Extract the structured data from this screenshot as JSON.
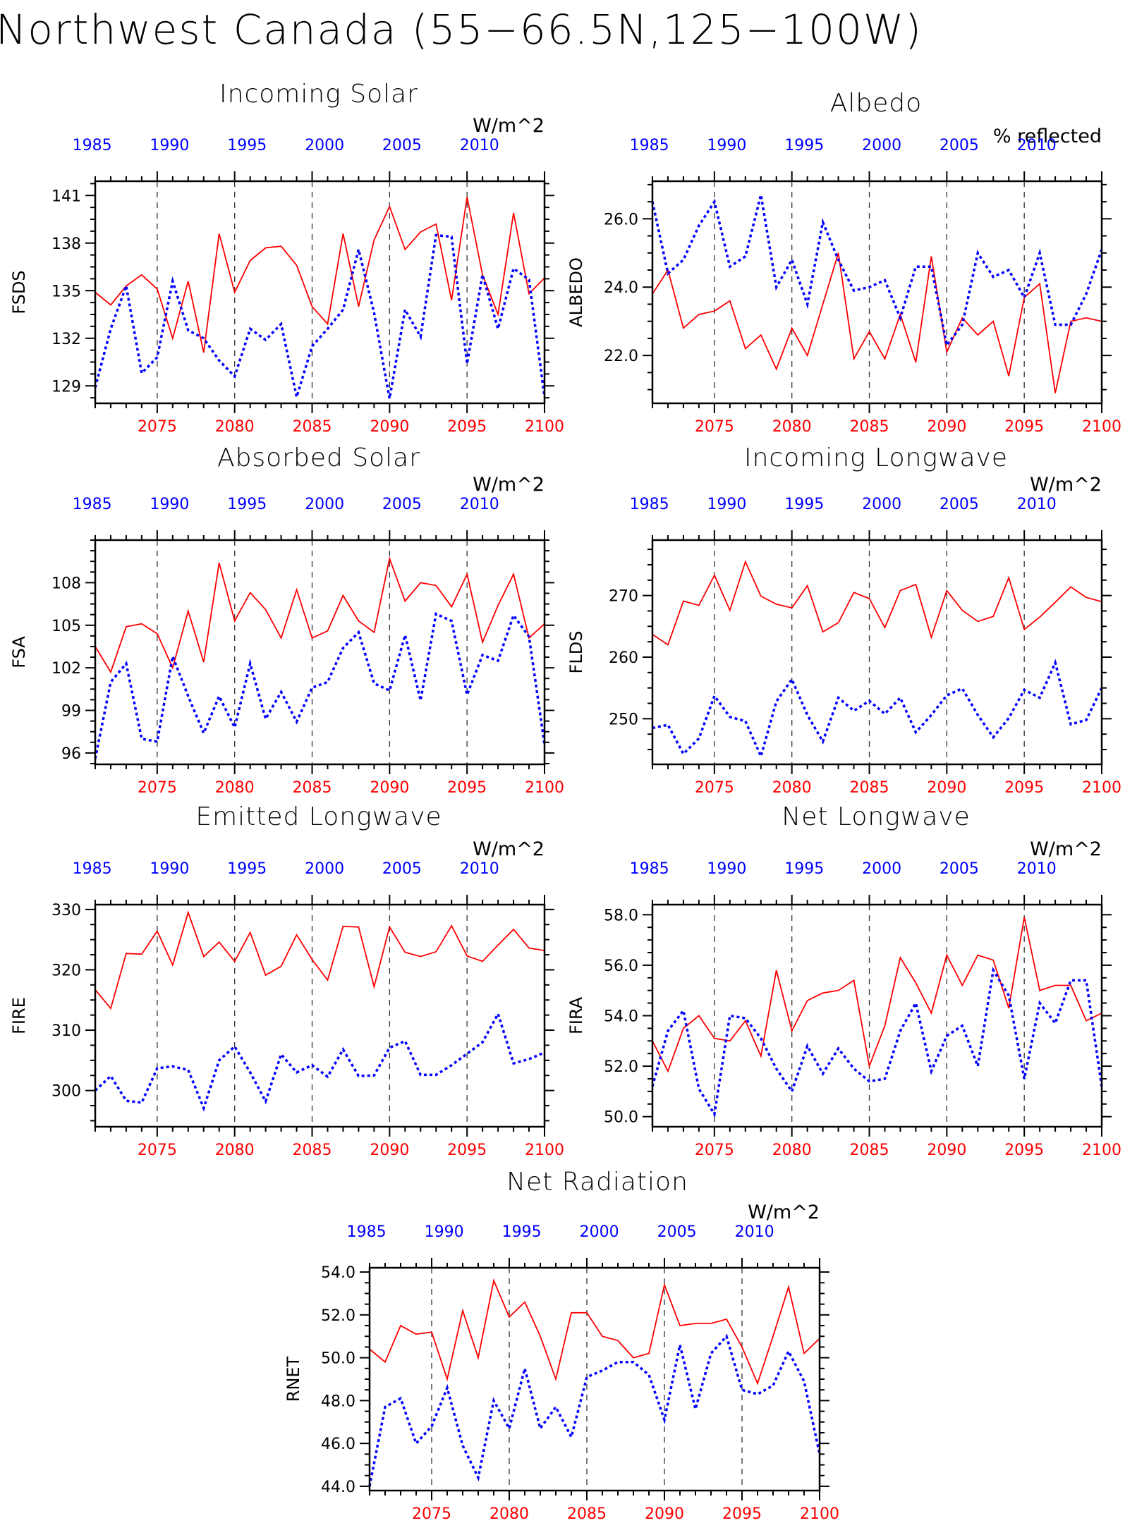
{
  "figure_title": "Northwest Canada (55−66.5N,125−100W)",
  "colors": {
    "future": "#ff0000",
    "historical": "#0000ff",
    "axis": "#000000"
  },
  "chart_data": [
    {
      "type": "line",
      "title": "Incoming Solar",
      "unit": "W/m^2",
      "ylabel": "FSDS",
      "ylim": [
        127.9,
        141.9
      ],
      "yticks": [
        129,
        132,
        135,
        138,
        141
      ],
      "ytick_labels": [
        "129",
        "132",
        "135",
        "138",
        "141"
      ],
      "series": [
        {
          "values": [
            134.9,
            134.1,
            135.3,
            136.0,
            135.1,
            132.0,
            135.6,
            131.1,
            138.6,
            134.9,
            136.9,
            137.7,
            137.8,
            136.6,
            134.0,
            132.9,
            138.6,
            134.0,
            138.2,
            140.3,
            137.6,
            138.7,
            139.2,
            134.4,
            140.9,
            136.0,
            133.5,
            139.9,
            134.8,
            135.8
          ]
        },
        {
          "values": [
            128.9,
            132.6,
            135.3,
            129.8,
            130.8,
            135.6,
            132.5,
            132.0,
            130.6,
            129.6,
            132.6,
            131.9,
            132.9,
            128.3,
            131.5,
            132.6,
            133.8,
            137.6,
            133.6,
            128.2,
            133.8,
            132.1,
            138.5,
            138.4,
            130.4,
            136.0,
            132.6,
            136.4,
            135.7,
            128.3
          ]
        }
      ]
    },
    {
      "type": "line",
      "title": "Albedo",
      "unit": "% reflected",
      "ylabel": "ALBEDO",
      "ylim": [
        20.6,
        27.1
      ],
      "yticks": [
        22,
        24,
        26
      ],
      "ytick_labels": [
        "22.0",
        "24.0",
        "26.0"
      ],
      "series": [
        {
          "values": [
            23.8,
            24.5,
            22.8,
            23.2,
            23.3,
            23.6,
            22.2,
            22.6,
            21.6,
            22.8,
            22.0,
            23.5,
            25.0,
            21.9,
            22.7,
            21.9,
            23.2,
            21.8,
            24.9,
            22.1,
            23.1,
            22.6,
            23.0,
            21.4,
            23.7,
            24.1,
            20.9,
            23.0,
            23.1,
            23.0
          ]
        },
        {
          "values": [
            26.5,
            24.4,
            24.8,
            25.8,
            26.5,
            24.6,
            24.9,
            26.7,
            24.0,
            24.8,
            23.5,
            25.9,
            24.8,
            23.9,
            24.0,
            24.2,
            23.1,
            24.6,
            24.6,
            22.3,
            22.9,
            25.0,
            24.3,
            24.5,
            23.7,
            25.0,
            22.9,
            22.9,
            23.8,
            25.1
          ]
        }
      ]
    },
    {
      "type": "line",
      "title": "Absorbed Solar",
      "unit": "W/m^2",
      "ylabel": "FSA",
      "ylim": [
        95.2,
        111.0
      ],
      "yticks": [
        96,
        99,
        102,
        105,
        108
      ],
      "ytick_labels": [
        "96",
        "99",
        "102",
        "105",
        "108"
      ],
      "series": [
        {
          "values": [
            103.5,
            101.7,
            104.9,
            105.1,
            104.4,
            102.0,
            106.0,
            102.4,
            109.4,
            105.3,
            107.3,
            106.1,
            104.1,
            107.5,
            104.1,
            104.6,
            107.1,
            105.3,
            104.5,
            109.7,
            106.7,
            108.0,
            107.8,
            106.3,
            108.6,
            103.8,
            106.4,
            108.6,
            104.1,
            105.1
          ]
        },
        {
          "values": [
            95.6,
            101.0,
            102.3,
            97.0,
            96.8,
            102.8,
            100.0,
            97.4,
            100.0,
            97.8,
            102.3,
            98.4,
            100.3,
            98.2,
            100.6,
            101.0,
            103.4,
            104.5,
            100.9,
            100.4,
            104.3,
            99.7,
            105.8,
            105.3,
            100.1,
            102.9,
            102.5,
            105.7,
            104.2,
            96.6
          ]
        }
      ]
    },
    {
      "type": "line",
      "title": "Incoming Longwave",
      "unit": "W/m^2",
      "ylabel": "FLDS",
      "ylim": [
        242.6,
        279.0
      ],
      "yticks": [
        250,
        260,
        270
      ],
      "ytick_labels": [
        "250",
        "260",
        "270"
      ],
      "series": [
        {
          "values": [
            263.7,
            262.0,
            269.1,
            268.4,
            273.3,
            267.6,
            275.5,
            269.9,
            268.6,
            268.0,
            271.6,
            264.1,
            265.6,
            270.5,
            269.5,
            264.8,
            270.8,
            271.8,
            263.2,
            270.8,
            267.6,
            265.8,
            266.6,
            272.9,
            264.5,
            266.5,
            268.9,
            271.4,
            269.7,
            269.0
          ]
        },
        {
          "values": [
            248.5,
            249.0,
            244.3,
            246.8,
            253.7,
            250.3,
            249.6,
            243.9,
            252.8,
            256.4,
            250.6,
            246.3,
            253.4,
            251.3,
            252.9,
            250.8,
            253.4,
            247.8,
            250.6,
            253.8,
            254.9,
            250.6,
            247.0,
            250.1,
            254.7,
            253.4,
            259.1,
            249.1,
            249.8,
            255.0
          ]
        }
      ]
    },
    {
      "type": "line",
      "title": "Emitted Longwave",
      "unit": "W/m^2",
      "ylabel": "FIRE",
      "ylim": [
        294.0,
        330.8
      ],
      "yticks": [
        300,
        310,
        320,
        330
      ],
      "ytick_labels": [
        "300",
        "310",
        "320",
        "330"
      ],
      "series": [
        {
          "values": [
            316.7,
            313.6,
            322.7,
            322.6,
            326.4,
            320.8,
            329.5,
            322.2,
            324.6,
            321.4,
            326.2,
            319.1,
            320.6,
            325.8,
            321.7,
            318.3,
            327.2,
            327.1,
            317.2,
            327.1,
            322.9,
            322.2,
            323.0,
            327.3,
            322.3,
            321.4,
            324.1,
            326.7,
            323.6,
            323.2
          ]
        },
        {
          "values": [
            300.0,
            302.4,
            298.3,
            298.0,
            303.7,
            304.0,
            303.4,
            297.1,
            305.0,
            307.3,
            303.0,
            298.2,
            306.0,
            303.0,
            304.2,
            302.3,
            306.8,
            302.4,
            302.5,
            307.1,
            308.2,
            302.6,
            302.6,
            304.2,
            306.1,
            308.0,
            312.7,
            304.5,
            305.2,
            306.3
          ]
        }
      ]
    },
    {
      "type": "line",
      "title": "Net Longwave",
      "unit": "W/m^2",
      "ylabel": "FIRA",
      "ylim": [
        49.6,
        58.4
      ],
      "yticks": [
        50,
        52,
        54,
        56,
        58
      ],
      "ytick_labels": [
        "50.0",
        "52.0",
        "54.0",
        "56.0",
        "58.0"
      ],
      "series": [
        {
          "values": [
            53.0,
            51.8,
            53.5,
            54.0,
            53.1,
            53.0,
            53.8,
            52.4,
            55.8,
            53.4,
            54.6,
            54.9,
            55.0,
            55.4,
            52.0,
            53.6,
            56.3,
            55.3,
            54.1,
            56.4,
            55.2,
            56.4,
            56.2,
            54.3,
            57.9,
            55.0,
            55.2,
            55.2,
            53.8,
            54.1
          ]
        },
        {
          "values": [
            51.2,
            53.4,
            54.2,
            51.1,
            50.1,
            54.0,
            53.9,
            53.1,
            51.9,
            51.0,
            52.8,
            51.7,
            52.7,
            51.9,
            51.4,
            51.5,
            53.4,
            54.5,
            51.8,
            53.2,
            53.6,
            52.0,
            55.8,
            54.8,
            51.5,
            54.5,
            53.7,
            55.4,
            55.4,
            51.2
          ]
        }
      ]
    },
    {
      "type": "line",
      "title": "Net Radiation",
      "unit": "W/m^2",
      "ylabel": "RNET",
      "ylim": [
        43.8,
        54.2
      ],
      "yticks": [
        44,
        46,
        48,
        50,
        52,
        54
      ],
      "ytick_labels": [
        "44.0",
        "46.0",
        "48.0",
        "50.0",
        "52.0",
        "54.0"
      ],
      "series": [
        {
          "values": [
            50.4,
            49.8,
            51.5,
            51.1,
            51.2,
            49.0,
            52.2,
            50.0,
            53.6,
            51.9,
            52.6,
            51.0,
            49.0,
            52.1,
            52.1,
            51.0,
            50.8,
            50.0,
            50.2,
            53.4,
            51.5,
            51.6,
            51.6,
            51.8,
            50.5,
            48.8,
            51.0,
            53.3,
            50.2,
            50.9
          ]
        },
        {
          "values": [
            44.0,
            47.7,
            48.1,
            46.0,
            46.8,
            48.6,
            45.9,
            44.4,
            48.0,
            46.7,
            49.5,
            46.7,
            47.7,
            46.3,
            49.1,
            49.4,
            49.8,
            49.8,
            49.2,
            47.1,
            50.6,
            47.6,
            50.2,
            51.0,
            48.5,
            48.3,
            48.7,
            50.3,
            48.9,
            45.5
          ]
        }
      ]
    }
  ],
  "bottom_axis": {
    "xlim": [
      2071,
      2100
    ],
    "tick_labels": [
      "2075",
      "2080",
      "2085",
      "2090",
      "2095",
      "2100"
    ]
  },
  "top_axis": {
    "tick_labels": [
      "1985",
      "1990",
      "1995",
      "2000",
      "2005",
      "2010"
    ]
  }
}
